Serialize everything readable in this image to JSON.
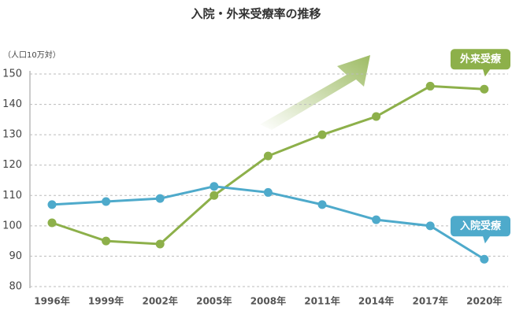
{
  "chart_data": {
    "type": "line",
    "title": "入院・外来受療率の推移",
    "y_label": "（人口10万対）",
    "categories": [
      "1996年",
      "1999年",
      "2002年",
      "2005年",
      "2008年",
      "2011年",
      "2014年",
      "2017年",
      "2020年"
    ],
    "series": [
      {
        "name": "外来受療",
        "color": "#8db04a",
        "values": [
          101,
          95,
          94,
          110,
          123,
          130,
          136,
          146,
          145
        ]
      },
      {
        "name": "入院受療",
        "color": "#4eaacb",
        "values": [
          107,
          108,
          109,
          113,
          111,
          107,
          102,
          100,
          89
        ]
      }
    ],
    "ylim": [
      80,
      150
    ],
    "yticks": [
      80,
      90,
      100,
      110,
      120,
      130,
      140,
      150
    ],
    "grid": true
  }
}
